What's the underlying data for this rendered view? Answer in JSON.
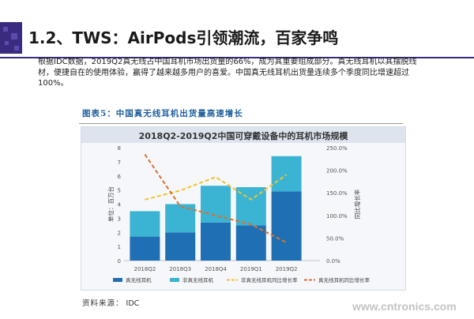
{
  "slide": {
    "title": "1.2、TWS：AirPods引领潮流，百家争鸣",
    "intro": "根据IDC数据，2019Q2真无线占中国耳机市场出货量的66%，成为其重要组成部分。真无线耳机以其摆脱线材，便捷自在的使用体验，赢得了越来越多用户的喜爱。中国真无线耳机出货量连续多个季度同比增速超过100%。",
    "figure_label": "图表5：中国真无线耳机出货量高速增长",
    "source_label": "资料来源：",
    "source_value": "IDC",
    "watermark": "www.cntronics.com"
  },
  "colors": {
    "true_wireless_bar": "#1f6fb5",
    "non_true_wireless_bar": "#3bb3d3",
    "true_wireless_growth_line": "#d9722e",
    "non_true_wireless_growth_line": "#f0c230",
    "accent": "#3a2a80"
  },
  "chart_data": {
    "type": "bar",
    "stacked": true,
    "title": "2018Q2-2019Q2中国可穿戴设备中的耳机市场规模",
    "ylabel": "单位：百万台",
    "y2label": "同比增长率",
    "ylim": [
      0,
      8
    ],
    "y2lim": [
      0,
      2.5
    ],
    "yticks": [
      "0",
      "1",
      "2",
      "3",
      "4",
      "5",
      "6",
      "7",
      "8"
    ],
    "y2ticks": [
      "0.0%",
      "50.0%",
      "100.0%",
      "150.0%",
      "200.0%",
      "250.0%"
    ],
    "categories": [
      "2018Q2",
      "2018Q3",
      "2018Q4",
      "2019Q1",
      "2019Q2"
    ],
    "series": [
      {
        "name": "真无线耳机",
        "kind": "bar",
        "axis": "left",
        "values": [
          1.7,
          2.0,
          2.7,
          2.5,
          4.9
        ]
      },
      {
        "name": "非真无线耳机",
        "kind": "bar",
        "axis": "left",
        "values": [
          1.8,
          2.0,
          2.6,
          2.7,
          2.5
        ]
      },
      {
        "name": "真无线耳机同比增长率",
        "kind": "line",
        "axis": "right",
        "style": "dashed",
        "values": [
          2.35,
          1.2,
          1.0,
          0.8,
          0.4
        ]
      },
      {
        "name": "非真无线耳机同比增长率",
        "kind": "line",
        "axis": "right",
        "style": "dashed",
        "values": [
          1.35,
          1.55,
          1.85,
          1.35,
          1.9
        ]
      }
    ],
    "legend_position": "bottom",
    "grid": false
  }
}
